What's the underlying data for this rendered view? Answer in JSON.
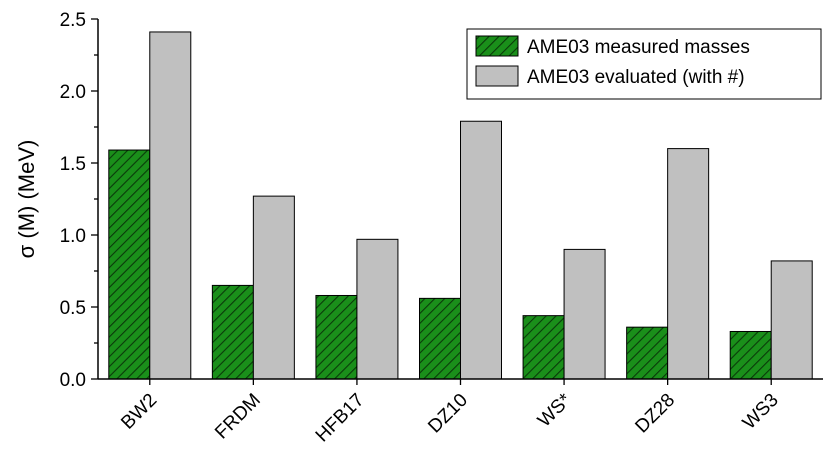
{
  "chart_data": {
    "type": "bar",
    "categories": [
      "BW2",
      "FRDM",
      "HFB17",
      "DZ10",
      "WS*",
      "DZ28",
      "WS3"
    ],
    "series": [
      {
        "name": "AME03 measured masses",
        "values": [
          1.59,
          0.65,
          0.58,
          0.56,
          0.44,
          0.36,
          0.33
        ],
        "color": "#1a8f1a",
        "pattern": "diagonal-hatch"
      },
      {
        "name": "AME03 evaluated (with #)",
        "values": [
          2.41,
          1.27,
          0.97,
          1.79,
          0.9,
          1.6,
          0.82
        ],
        "color": "#c0c0c0",
        "pattern": "solid"
      }
    ],
    "title": "",
    "xlabel": "",
    "ylabel": "σ (M) (MeV)",
    "ylim": [
      0.0,
      2.5
    ],
    "yticks": [
      "0.0",
      "0.5",
      "1.0",
      "1.5",
      "2.0",
      "2.5"
    ],
    "legend_position": "top-right",
    "grid": false
  }
}
